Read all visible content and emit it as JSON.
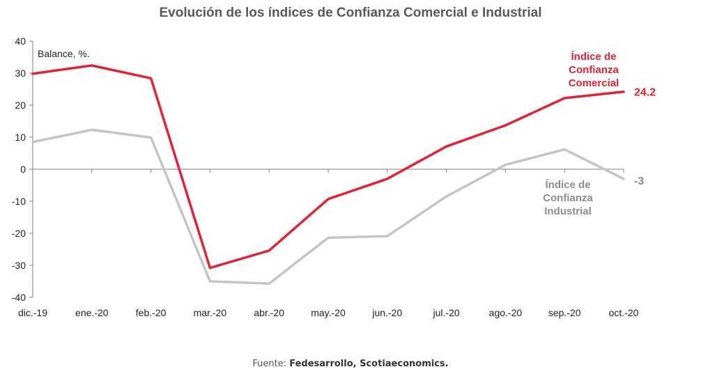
{
  "chart_data": {
    "type": "line",
    "title": "Evolución de los índices de Confianza Comercial e Industrial",
    "ylabel": "Balance, %.",
    "xlabel": "",
    "ylim": [
      -40,
      40
    ],
    "yticks": [
      40,
      30,
      20,
      10,
      0,
      -10,
      -20,
      -30,
      -40
    ],
    "grid": false,
    "categories": [
      "dic.-19",
      "ene.-20",
      "feb.-20",
      "mar.-20",
      "abr.-20",
      "may.-20",
      "jun.-20",
      "jul.-20",
      "ago.-20",
      "sep.-20",
      "oct.-20"
    ],
    "series": [
      {
        "name": "Índice de Confianza Comercial",
        "name_lines": [
          "Índice de",
          "Confianza",
          "Comercial"
        ],
        "color": "#e02232",
        "values": [
          29.8,
          32.4,
          28.4,
          -30.8,
          -25.4,
          -9.3,
          -3.0,
          7.1,
          13.7,
          22.2,
          24.2
        ],
        "end_label": "24.2"
      },
      {
        "name": "Índice de Confianza Industrial",
        "name_lines": [
          "Índice de",
          "Confianza",
          "Industrial"
        ],
        "color": "#c4c4c4",
        "label_color": "#8c8c8c",
        "values": [
          8.5,
          12.3,
          9.9,
          -35.0,
          -35.7,
          -21.4,
          -20.9,
          -8.5,
          1.4,
          6.2,
          -3.0
        ],
        "end_label": "-3"
      }
    ]
  },
  "source": {
    "prefix": "Fuente: ",
    "text": "Fedesarrollo, Scotiaeconomics."
  }
}
